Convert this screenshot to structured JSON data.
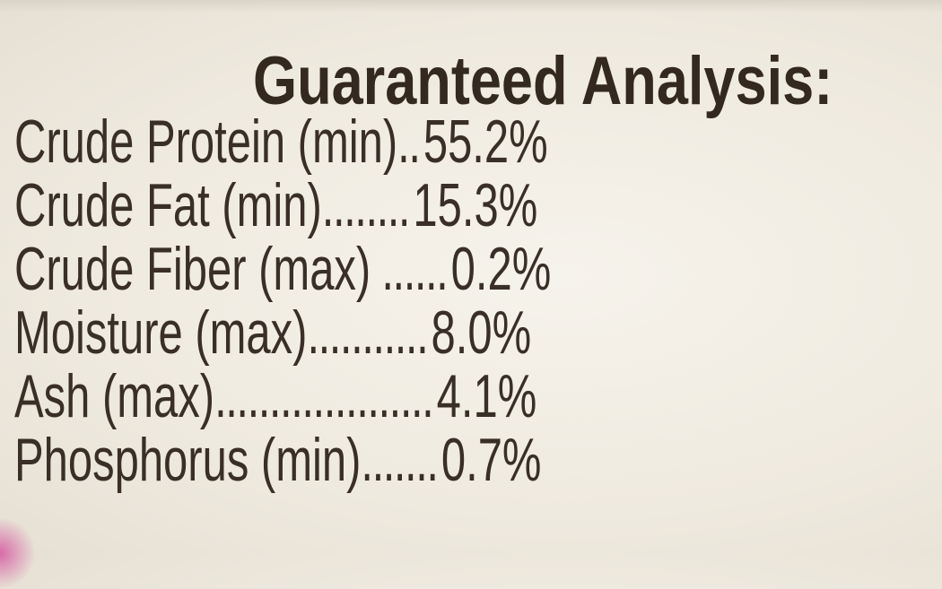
{
  "label": {
    "title": "Guaranteed Analysis:",
    "rows": [
      {
        "name": "Crude Protein (min)",
        "leader": "..",
        "value": "55.2%"
      },
      {
        "name": "Crude Fat (min)",
        "leader": "........",
        "value": "15.3%"
      },
      {
        "name": "Crude Fiber (max)",
        "leader": " ......",
        "value": "0.2%"
      },
      {
        "name": "Moisture (max)",
        "leader": "...........",
        "value": "8.0%"
      },
      {
        "name": "Ash (max)",
        "leader": "....................",
        "value": "4.1%"
      },
      {
        "name": "Phosphorus (min)",
        "leader": ".......",
        "value": "0.7%"
      }
    ]
  }
}
